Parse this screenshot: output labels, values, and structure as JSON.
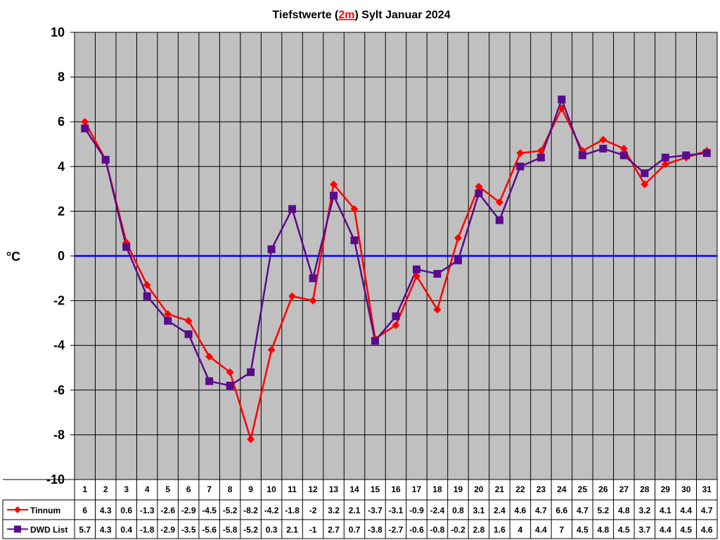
{
  "chart_data": {
    "type": "line",
    "title_prefix": "Tiefstwerte (",
    "title_highlight": "2m",
    "title_suffix": ") Sylt Januar 2024",
    "ylabel": "°C",
    "xlabel": "",
    "ylim": [
      -10,
      10
    ],
    "ytick_step": 2,
    "grid": true,
    "plot_background": "#c0c0c0",
    "title_highlight_color": "#ff0000",
    "zero_line_color": "#0000ff",
    "categories": [
      "1",
      "2",
      "3",
      "4",
      "5",
      "6",
      "7",
      "8",
      "9",
      "10",
      "11",
      "12",
      "13",
      "14",
      "15",
      "16",
      "17",
      "18",
      "19",
      "20",
      "21",
      "22",
      "23",
      "24",
      "25",
      "26",
      "27",
      "28",
      "29",
      "30",
      "31"
    ],
    "series": [
      {
        "name": "Tinnum",
        "color": "#ff0000",
        "marker": "diamond",
        "values": [
          6,
          4.3,
          0.6,
          -1.3,
          -2.6,
          -2.9,
          -4.5,
          -5.2,
          -8.2,
          -4.2,
          -1.8,
          -2,
          3.2,
          2.1,
          -3.7,
          -3.1,
          -0.9,
          -2.4,
          0.8,
          3.1,
          2.4,
          4.6,
          4.7,
          6.6,
          4.7,
          5.2,
          4.8,
          3.2,
          4.1,
          4.4,
          4.7
        ]
      },
      {
        "name": "DWD List",
        "color": "#5a0a8c",
        "marker": "square",
        "values": [
          5.7,
          4.3,
          0.4,
          -1.8,
          -2.9,
          -3.5,
          -5.6,
          -5.8,
          -5.2,
          0.3,
          2.1,
          -1,
          2.7,
          0.7,
          -3.8,
          -2.7,
          -0.6,
          -0.8,
          -0.2,
          2.8,
          1.6,
          4,
          4.4,
          7,
          4.5,
          4.8,
          4.5,
          3.7,
          4.4,
          4.5,
          4.6
        ]
      }
    ],
    "data_table": true
  }
}
